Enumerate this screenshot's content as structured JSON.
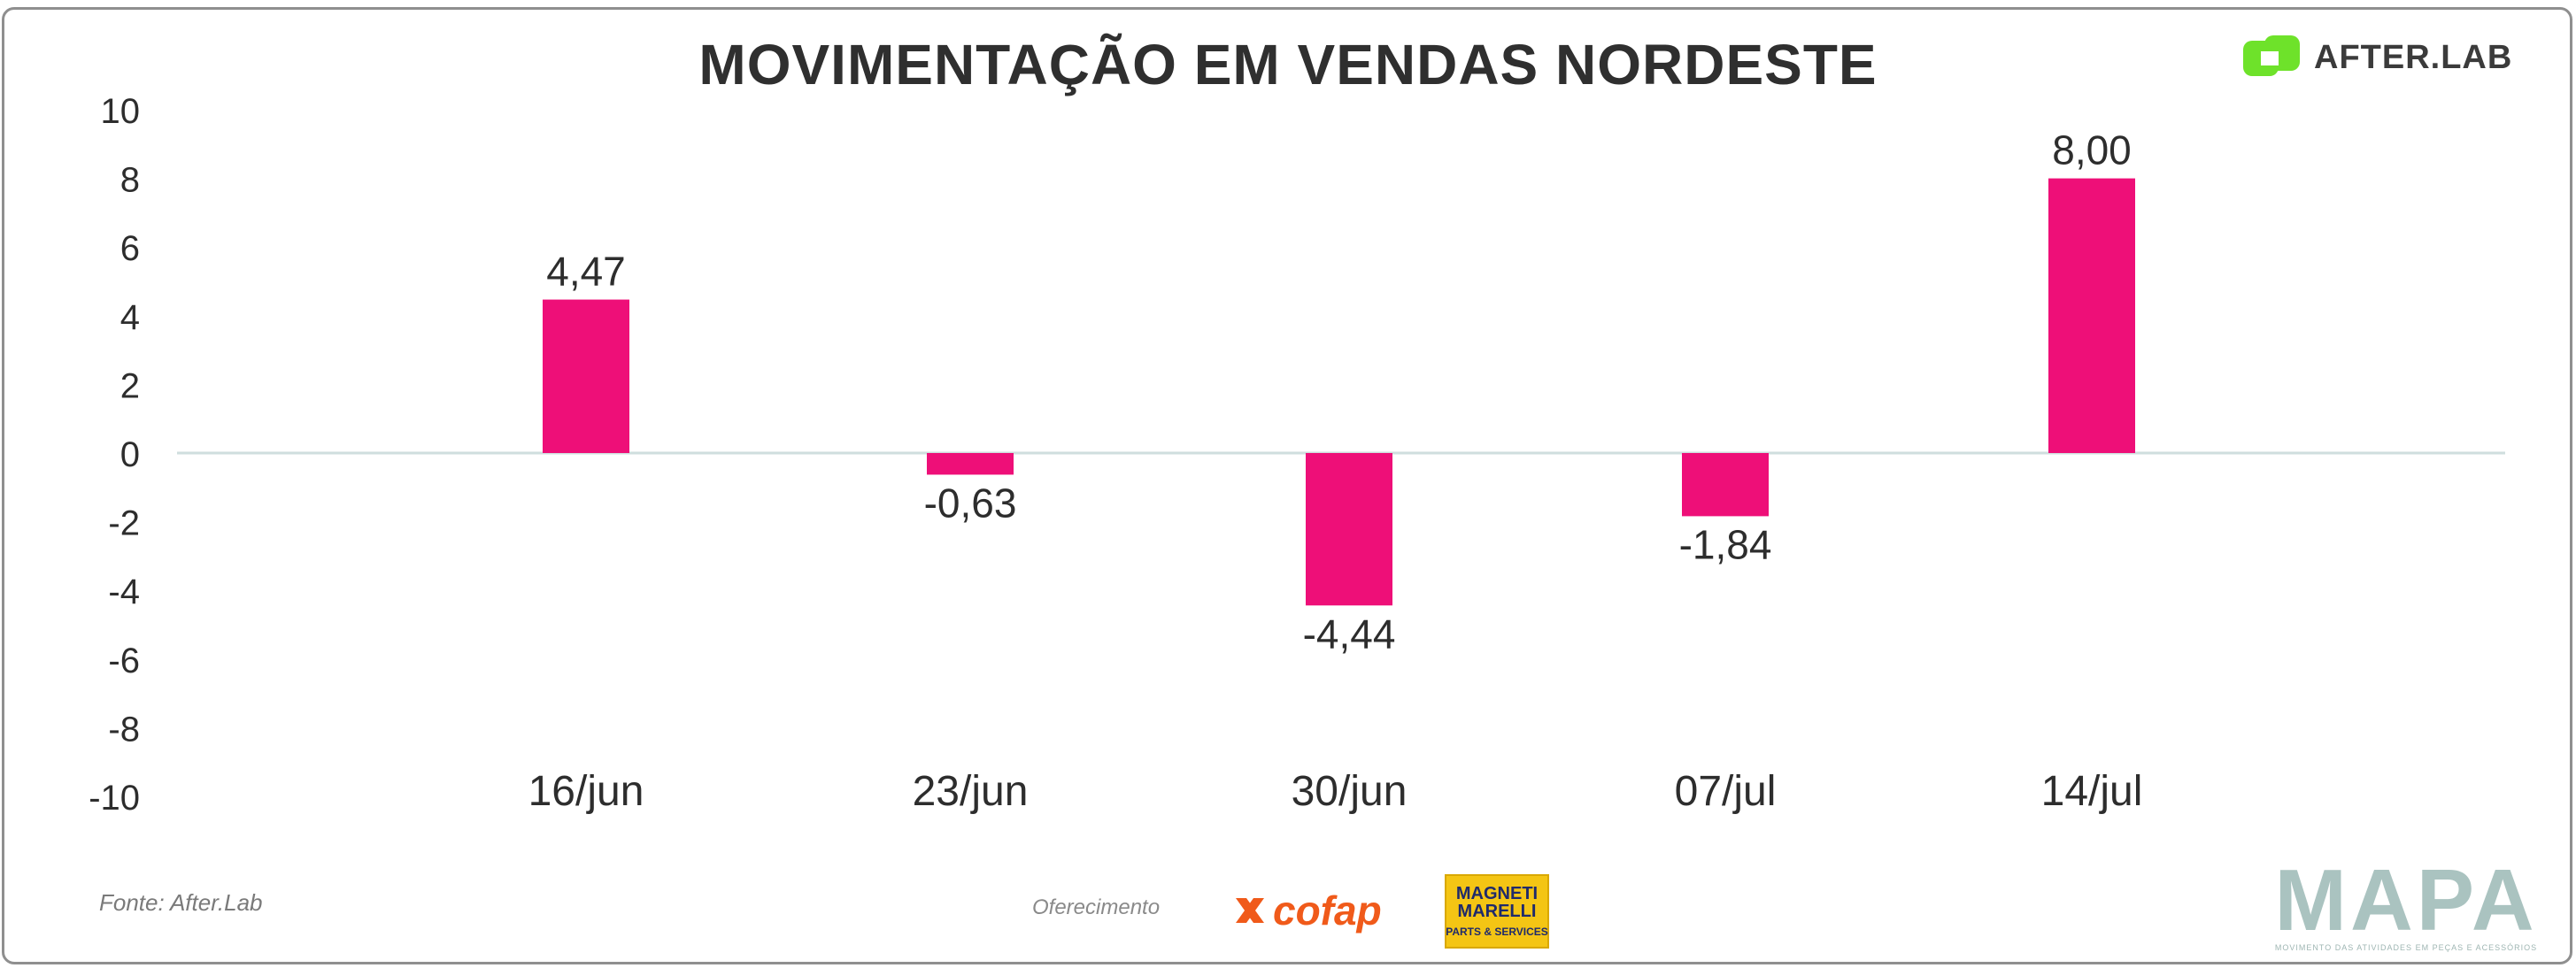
{
  "header": {
    "title": "MOVIMENTAÇÃO EM VENDAS NORDESTE",
    "brand": "AFTER.LAB"
  },
  "colors": {
    "bar": "#ee0f78",
    "axis_text": "#2d2d2d",
    "zero_line": "#cfdede",
    "brand_green": "#6ee22a"
  },
  "chart_data": {
    "type": "bar",
    "title": "MOVIMENTAÇÃO EM VENDAS NORDESTE",
    "categories": [
      "16/jun",
      "23/jun",
      "30/jun",
      "07/jul",
      "14/jul"
    ],
    "values": [
      4.47,
      -0.63,
      -4.44,
      -1.84,
      8.0
    ],
    "value_labels": [
      "4,47",
      "-0,63",
      "-4,44",
      "-1,84",
      "8,00"
    ],
    "ylim": [
      -10,
      10
    ],
    "yticks": [
      10,
      8,
      6,
      4,
      2,
      0,
      -2,
      -4,
      -6,
      -8,
      -10
    ],
    "grid": false,
    "legend": "none"
  },
  "footer": {
    "source": "Fonte: After.Lab",
    "sponsor_label": "Oferecimento",
    "sponsors": [
      "cofap",
      "MAGNETI MARELLI",
      "PARTS & SERVICES"
    ],
    "mapa": "MAPA",
    "mapa_tagline": "MOVIMENTO DAS ATIVIDADES EM PEÇAS E ACESSÓRIOS"
  }
}
